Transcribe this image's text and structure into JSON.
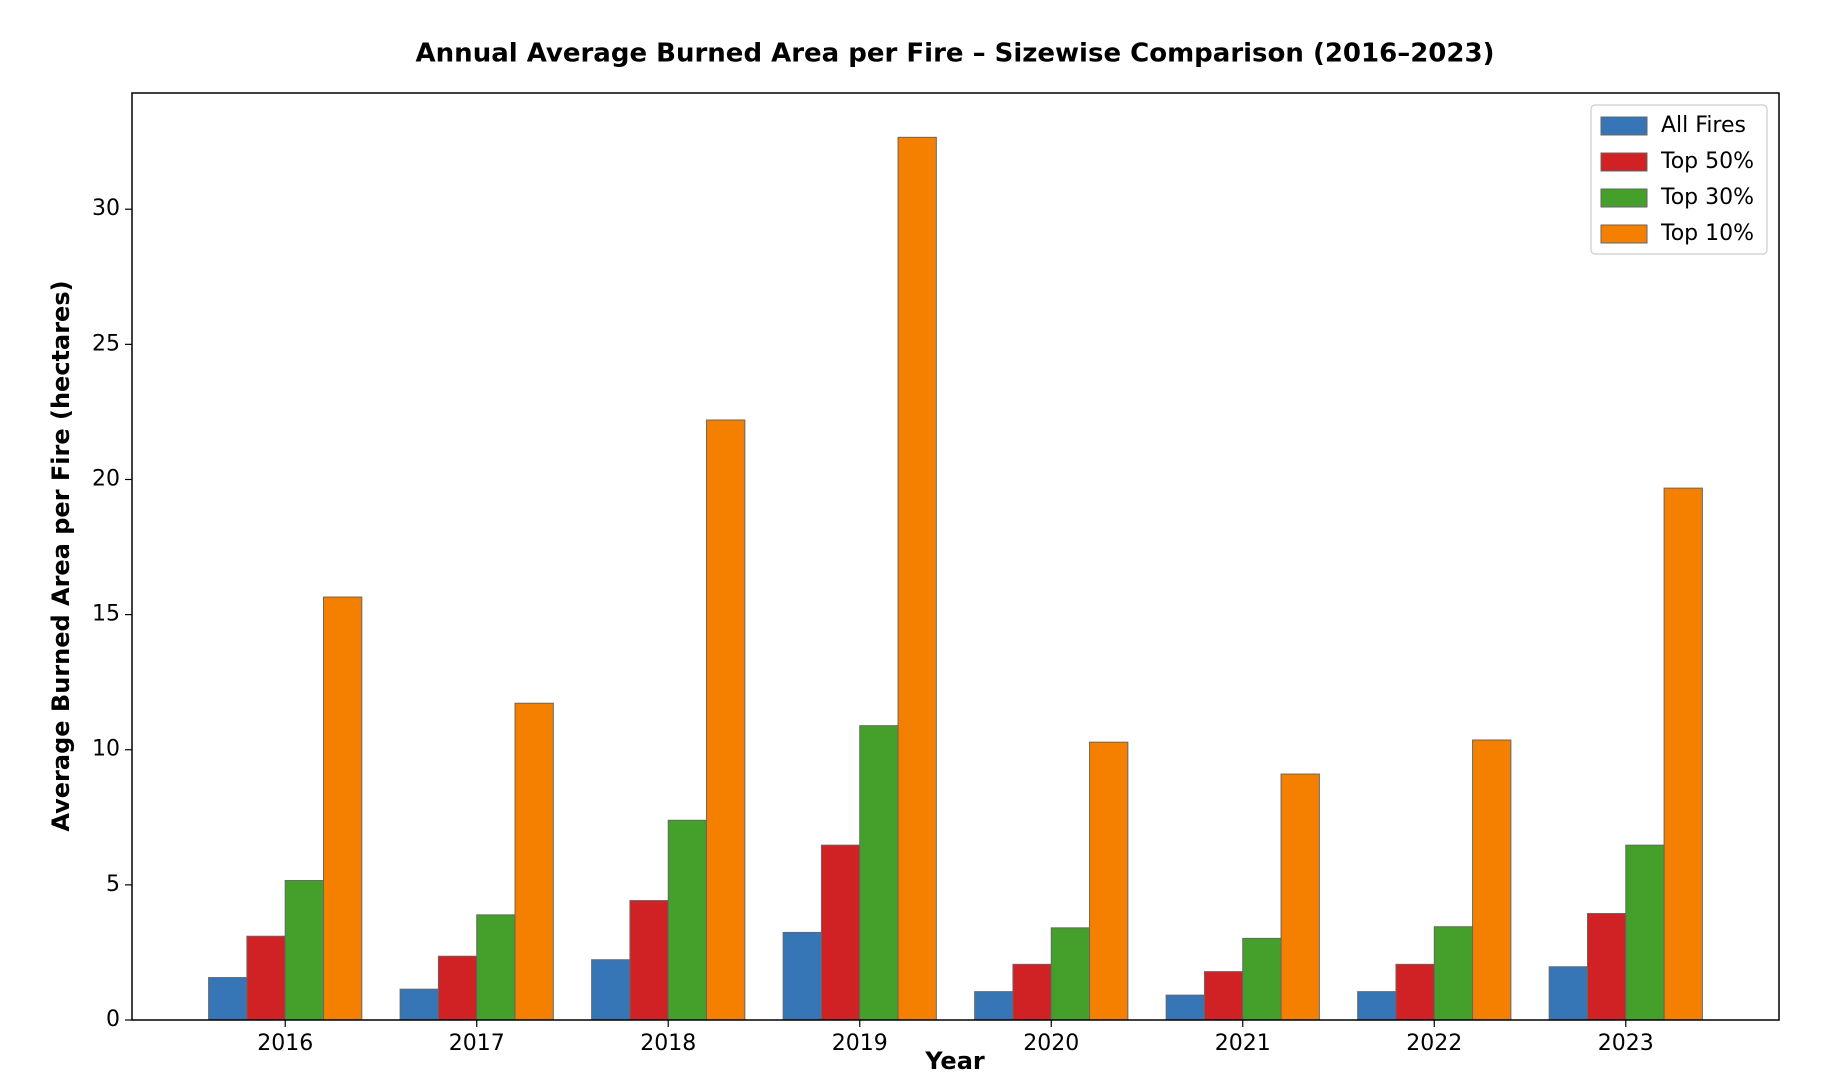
{
  "chart_data": {
    "type": "bar",
    "title": "Annual Average Burned Area per Fire – Sizewise Comparison (2016–2023)",
    "x_label": "Year",
    "y_label": "Average Burned Area per Fire (hectares)",
    "categories": [
      "2016",
      "2017",
      "2018",
      "2019",
      "2020",
      "2021",
      "2022",
      "2023"
    ],
    "series": [
      {
        "name": "All Fires",
        "color": "#3776b6",
        "values": [
          1.57,
          1.14,
          2.23,
          3.24,
          1.05,
          0.92,
          1.05,
          1.97
        ]
      },
      {
        "name": "Top 50%",
        "color": "#d02225",
        "values": [
          3.1,
          2.36,
          4.42,
          6.47,
          2.06,
          1.79,
          2.06,
          3.94
        ]
      },
      {
        "name": "Top 30%",
        "color": "#44a02a",
        "values": [
          5.16,
          3.89,
          7.39,
          10.89,
          3.41,
          3.02,
          3.45,
          6.47
        ]
      },
      {
        "name": "Top 10%",
        "color": "#f58000",
        "values": [
          15.65,
          11.72,
          22.2,
          32.66,
          10.28,
          9.1,
          10.36,
          19.68
        ]
      }
    ],
    "ylim": [
      0,
      34.3
    ],
    "yticks": [
      0,
      5,
      10,
      15,
      20,
      25,
      30
    ],
    "grid": false,
    "legend": "upper right"
  }
}
